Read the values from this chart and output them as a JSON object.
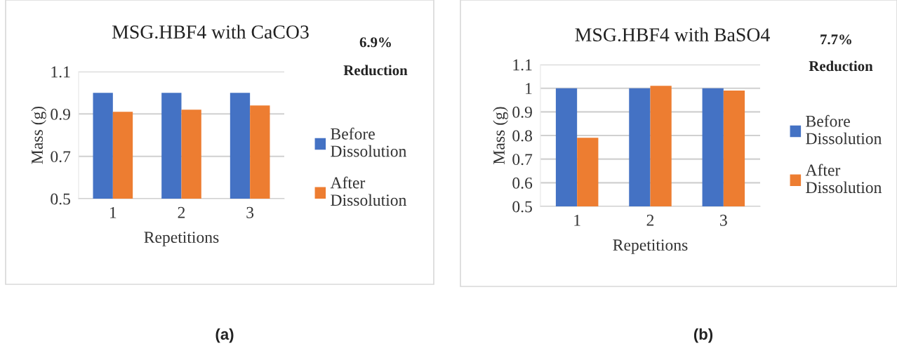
{
  "chart_data": [
    {
      "type": "bar",
      "title": "MSG.HBF4 with CaCO3",
      "xlabel": "Repetitions",
      "ylabel": "Mass (g)",
      "categories": [
        "1",
        "2",
        "3"
      ],
      "series": [
        {
          "name": "Before Dissolution",
          "color": "#4472c4",
          "values": [
            1.0,
            1.0,
            1.0
          ]
        },
        {
          "name": "After Dissolution",
          "color": "#ed7d31",
          "values": [
            0.91,
            0.92,
            0.94
          ]
        }
      ],
      "ylim": [
        0.5,
        1.1
      ],
      "yticks": [
        0.5,
        0.7,
        0.9,
        1.1
      ],
      "grid": "y",
      "legend": "right",
      "annotations": [
        "6.9%",
        "Reduction",
        "(a)"
      ]
    },
    {
      "type": "bar",
      "title": "MSG.HBF4 with BaSO4",
      "xlabel": "Repetitions",
      "ylabel": "Mass (g)",
      "categories": [
        "1",
        "2",
        "3"
      ],
      "series": [
        {
          "name": "Before Dissolution",
          "color": "#4472c4",
          "values": [
            1.0,
            1.0,
            1.0
          ]
        },
        {
          "name": "After Dissolution",
          "color": "#ed7d31",
          "values": [
            0.79,
            1.01,
            0.99
          ]
        }
      ],
      "ylim": [
        0.5,
        1.1
      ],
      "yticks": [
        0.5,
        0.6,
        0.7,
        0.8,
        0.9,
        1,
        1.1
      ],
      "grid": "y",
      "legend": "right",
      "annotations": [
        "7.7%",
        "Reduction",
        "(b)"
      ]
    }
  ]
}
